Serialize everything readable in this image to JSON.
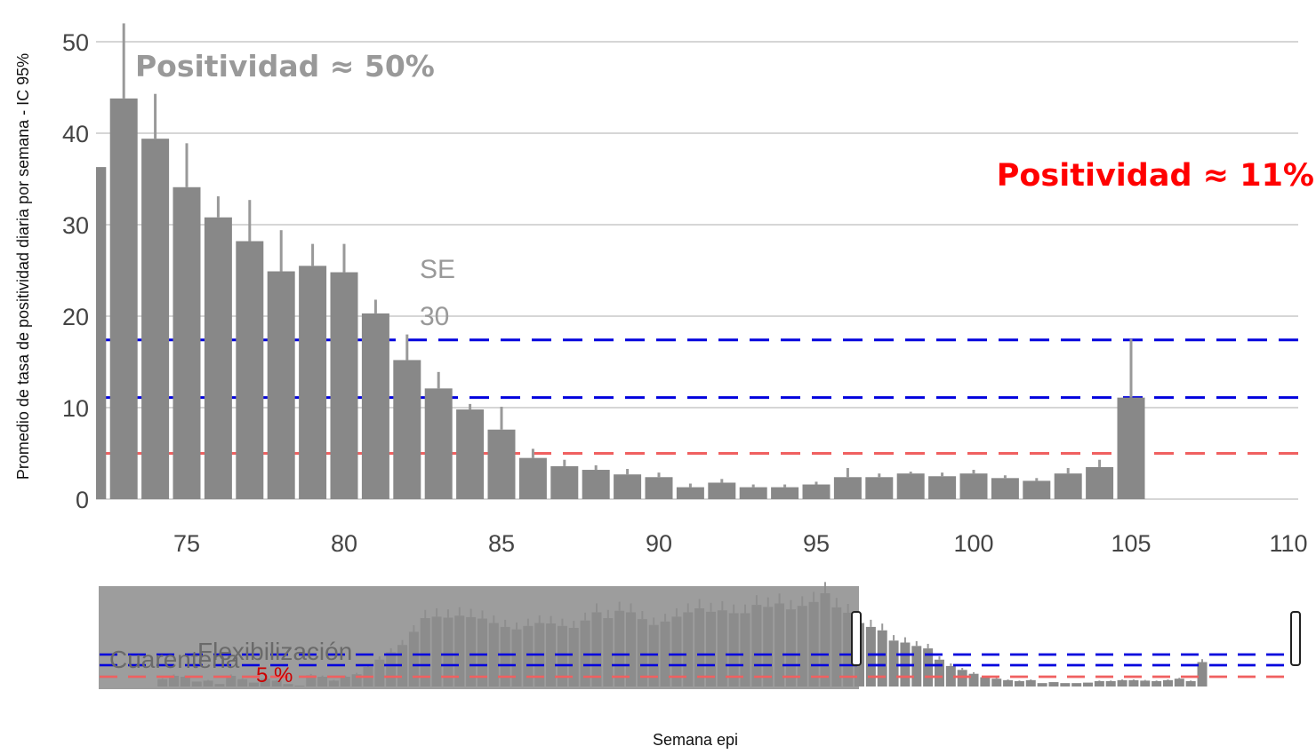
{
  "chart_data": {
    "type": "bar",
    "xlabel": "Semana epi",
    "ylabel": "Promedio de tasa de positividad diaria por semana - IC 95%",
    "xlim": [
      72,
      110
    ],
    "ylim": [
      0,
      50
    ],
    "x_ticks": [
      75,
      80,
      85,
      90,
      95,
      100,
      105,
      110
    ],
    "y_ticks": [
      0,
      10,
      20,
      30,
      40,
      50
    ],
    "grid": true,
    "colors": {
      "bar": "#888888",
      "error": "#999999",
      "grid": "#c8c8c8",
      "blue_line": "#0000dd",
      "red_line": "#f06060",
      "highlight_red": "#ff0000",
      "annotation_gray": "#999999"
    },
    "series": [
      {
        "x": [
          72,
          73,
          74,
          75,
          76,
          77,
          78,
          79,
          80,
          81,
          82,
          83,
          84,
          85,
          86,
          87,
          88,
          89,
          90,
          91,
          92,
          93,
          94,
          95,
          96,
          97,
          98,
          99,
          100,
          101,
          102,
          103,
          104,
          105
        ],
        "values": [
          36.3,
          43.8,
          39.4,
          34.1,
          30.8,
          28.2,
          24.9,
          25.5,
          24.8,
          20.3,
          15.2,
          12.1,
          9.8,
          7.6,
          4.5,
          3.6,
          3.2,
          2.7,
          2.4,
          1.3,
          1.8,
          1.3,
          1.3,
          1.6,
          2.4,
          2.4,
          2.8,
          2.5,
          2.8,
          2.3,
          2.0,
          2.8,
          3.5,
          11.1
        ],
        "upper": [
          36.3,
          52.0,
          44.3,
          38.9,
          33.1,
          32.7,
          29.4,
          27.9,
          27.9,
          21.8,
          18.0,
          13.9,
          10.4,
          10.1,
          5.5,
          4.3,
          3.7,
          3.3,
          2.9,
          1.7,
          2.2,
          1.6,
          1.6,
          1.9,
          3.4,
          2.8,
          3.0,
          2.9,
          3.2,
          2.6,
          2.3,
          3.4,
          4.3,
          17.5
        ]
      }
    ],
    "reference_lines": [
      {
        "y": 17.4,
        "color": "#0000dd",
        "style": "dashed"
      },
      {
        "y": 11.1,
        "color": "#0000dd",
        "style": "dashed"
      },
      {
        "y": 5.0,
        "color": "#f06060",
        "style": "dashed"
      }
    ],
    "annotations": {
      "peak": "Positividad ≈ 50%",
      "current": "Positividad ≈ 11%",
      "se_line1": "SE",
      "se_line2": "30"
    },
    "overview": {
      "bars": [
        0,
        0,
        0,
        0,
        0,
        1.5,
        2.2,
        2.0,
        1.0,
        1.2,
        0.5,
        2.2,
        1.5,
        0.8,
        1.6,
        1.2,
        0.5,
        0.2,
        2.3,
        2.0,
        1.2,
        2.0,
        2.5,
        4.0,
        5.5,
        7.0,
        8.5,
        11.2,
        14.0,
        14.3,
        14.1,
        14.5,
        14.2,
        13.9,
        13.0,
        12.2,
        11.7,
        12.4,
        13.0,
        12.9,
        12.4,
        12.0,
        13.5,
        15.2,
        14.0,
        15.5,
        15.2,
        13.8,
        12.6,
        13.3,
        14.3,
        15.2,
        16.0,
        15.3,
        15.6,
        15.0,
        15.0,
        16.7,
        16.3,
        17.0,
        15.8,
        16.5,
        17.3,
        19.1,
        16.2,
        15.1,
        13.0,
        12.2,
        11.5,
        9.4,
        9.0,
        8.3,
        7.8,
        5.5,
        4.2,
        3.4,
        2.6,
        1.9,
        1.6,
        1.3,
        1.1,
        1.3,
        0.7,
        0.9,
        0.7,
        0.7,
        0.8,
        1.1,
        1.1,
        1.3,
        1.3,
        1.2,
        1.1,
        1.3,
        1.6,
        1.1,
        5.0
      ],
      "ymax": 20,
      "labels": {
        "cuarentena": "Cuarentena",
        "flexibilizacion": "Flexibilización",
        "five_pct": "5 %"
      }
    }
  }
}
